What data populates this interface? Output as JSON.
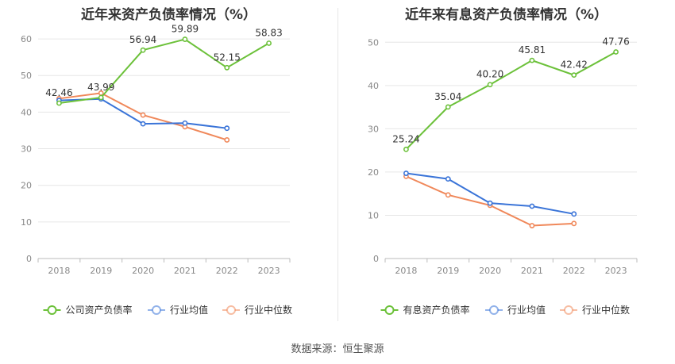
{
  "source_text": "数据来源：恒生聚源",
  "colors": {
    "company": "#6cc13a",
    "avg": "#3a74d8",
    "median": "#f0885a",
    "grid": "#e6e6e6",
    "axis": "#bbbbbb"
  },
  "chart_data": [
    {
      "type": "line",
      "title": "近年来资产负债率情况（%）",
      "categories": [
        "2018",
        "2019",
        "2020",
        "2021",
        "2022",
        "2023"
      ],
      "ylim": [
        0,
        65
      ],
      "yticks": [
        0,
        10,
        20,
        30,
        40,
        50,
        60
      ],
      "grid": true,
      "legend_position": "bottom",
      "series": [
        {
          "name": "公司资产负债率",
          "key": "company",
          "values": [
            42.46,
            43.99,
            56.94,
            59.89,
            52.15,
            58.83
          ],
          "labels": [
            "42.46",
            "43.99",
            "56.94",
            "59.89",
            "52.15",
            "58.83"
          ]
        },
        {
          "name": "行业均值",
          "key": "avg",
          "values": [
            43.2,
            43.6,
            36.8,
            37.0,
            35.6,
            null
          ]
        },
        {
          "name": "行业中位数",
          "key": "median",
          "values": [
            43.7,
            45.2,
            39.2,
            36.0,
            32.4,
            null
          ]
        }
      ]
    },
    {
      "type": "line",
      "title": "近年来有息资产负债率情况（%）",
      "categories": [
        "2018",
        "2019",
        "2020",
        "2021",
        "2022",
        "2023"
      ],
      "ylim": [
        0,
        55
      ],
      "yticks": [
        0,
        10,
        20,
        30,
        40,
        50
      ],
      "grid": true,
      "legend_position": "bottom",
      "series": [
        {
          "name": "有息资产负债率",
          "key": "company",
          "values": [
            25.24,
            35.04,
            40.2,
            45.81,
            42.42,
            47.76
          ],
          "labels": [
            "25.24",
            "35.04",
            "40.20",
            "45.81",
            "42.42",
            "47.76"
          ]
        },
        {
          "name": "行业均值",
          "key": "avg",
          "values": [
            19.7,
            18.4,
            12.8,
            12.1,
            10.3,
            null
          ]
        },
        {
          "name": "行业中位数",
          "key": "median",
          "values": [
            19.0,
            14.7,
            12.3,
            7.6,
            8.1,
            null
          ]
        }
      ]
    }
  ]
}
